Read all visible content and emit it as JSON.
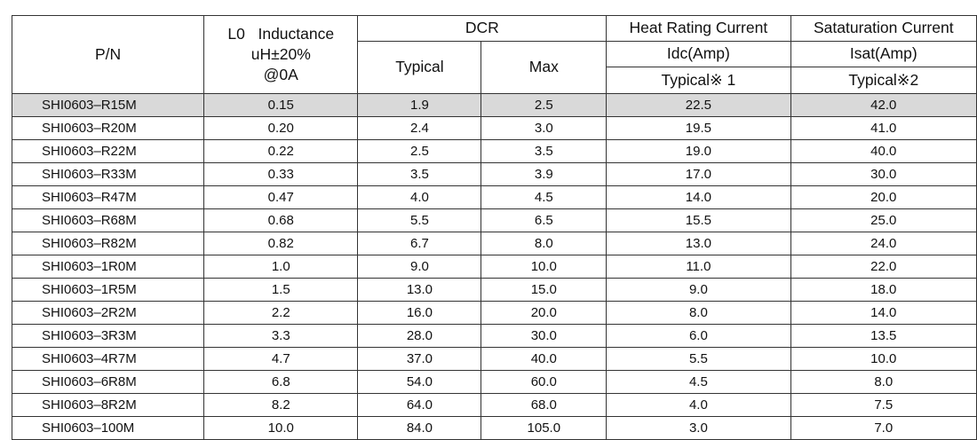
{
  "header": {
    "pn": "P/N",
    "inductance_l1": "L0   Inductance",
    "inductance_l2": "uH±20%",
    "inductance_l3": "@0A",
    "dcr": "DCR",
    "dcr_typical": "Typical",
    "dcr_max": "Max",
    "heat": "Heat Rating Current",
    "heat_unit": "Idc(Amp)",
    "heat_typ": "Typical※ 1",
    "sat": "Sataturation Current",
    "sat_unit": "Isat(Amp)",
    "sat_typ": "Typical※2"
  },
  "rows": [
    {
      "pn": "SHI0603–R15M",
      "ind": "0.15",
      "dcr_typ": "1.9",
      "dcr_max": "2.5",
      "idc": "22.5",
      "isat": "42.0"
    },
    {
      "pn": "SHI0603–R20M",
      "ind": "0.20",
      "dcr_typ": "2.4",
      "dcr_max": "3.0",
      "idc": "19.5",
      "isat": "41.0"
    },
    {
      "pn": "SHI0603–R22M",
      "ind": "0.22",
      "dcr_typ": "2.5",
      "dcr_max": "3.5",
      "idc": "19.0",
      "isat": "40.0"
    },
    {
      "pn": "SHI0603–R33M",
      "ind": "0.33",
      "dcr_typ": "3.5",
      "dcr_max": "3.9",
      "idc": "17.0",
      "isat": "30.0"
    },
    {
      "pn": "SHI0603–R47M",
      "ind": "0.47",
      "dcr_typ": "4.0",
      "dcr_max": "4.5",
      "idc": "14.0",
      "isat": "20.0"
    },
    {
      "pn": "SHI0603–R68M",
      "ind": "0.68",
      "dcr_typ": "5.5",
      "dcr_max": "6.5",
      "idc": "15.5",
      "isat": "25.0"
    },
    {
      "pn": "SHI0603–R82M",
      "ind": "0.82",
      "dcr_typ": "6.7",
      "dcr_max": "8.0",
      "idc": "13.0",
      "isat": "24.0"
    },
    {
      "pn": "SHI0603–1R0M",
      "ind": "1.0",
      "dcr_typ": "9.0",
      "dcr_max": "10.0",
      "idc": "11.0",
      "isat": "22.0"
    },
    {
      "pn": "SHI0603–1R5M",
      "ind": "1.5",
      "dcr_typ": "13.0",
      "dcr_max": "15.0",
      "idc": "9.0",
      "isat": "18.0"
    },
    {
      "pn": "SHI0603–2R2M",
      "ind": "2.2",
      "dcr_typ": "16.0",
      "dcr_max": "20.0",
      "idc": "8.0",
      "isat": "14.0"
    },
    {
      "pn": "SHI0603–3R3M",
      "ind": "3.3",
      "dcr_typ": "28.0",
      "dcr_max": "30.0",
      "idc": "6.0",
      "isat": "13.5"
    },
    {
      "pn": "SHI0603–4R7M",
      "ind": "4.7",
      "dcr_typ": "37.0",
      "dcr_max": "40.0",
      "idc": "5.5",
      "isat": "10.0"
    },
    {
      "pn": "SHI0603–6R8M",
      "ind": "6.8",
      "dcr_typ": "54.0",
      "dcr_max": "60.0",
      "idc": "4.5",
      "isat": "8.0"
    },
    {
      "pn": "SHI0603–8R2M",
      "ind": "8.2",
      "dcr_typ": "64.0",
      "dcr_max": "68.0",
      "idc": "4.0",
      "isat": "7.5"
    },
    {
      "pn": "SHI0603–100M",
      "ind": "10.0",
      "dcr_typ": "84.0",
      "dcr_max": "105.0",
      "idc": "3.0",
      "isat": "7.0"
    }
  ]
}
